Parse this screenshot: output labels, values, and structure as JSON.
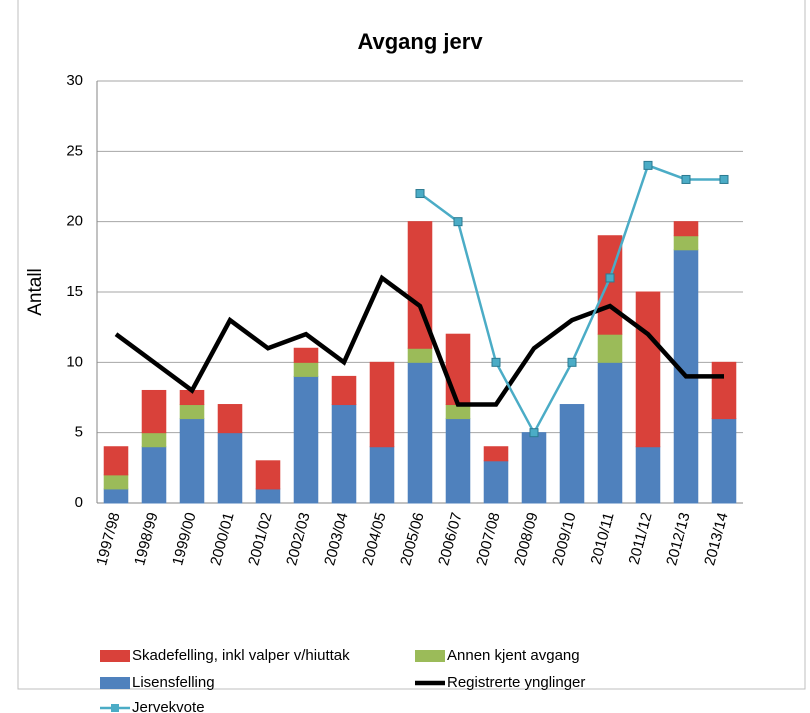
{
  "chart_data": {
    "type": "bar",
    "title": "Avgang jerv",
    "y_label": "Antall",
    "categories": [
      "1997/98",
      "1998/99",
      "1999/00",
      "2000/01",
      "2001/02",
      "2002/03",
      "2003/04",
      "2004/05",
      "2005/06",
      "2006/07",
      "2007/08",
      "2008/09",
      "2009/10",
      "2010/11",
      "2011/12",
      "2012/13",
      "2013/14"
    ],
    "series": [
      {
        "name": "Lisensfelling",
        "type": "bar",
        "color": "#4f81bd",
        "values": [
          1,
          4,
          6,
          5,
          1,
          9,
          7,
          4,
          10,
          6,
          3,
          5,
          7,
          10,
          4,
          18,
          6
        ]
      },
      {
        "name": "Annen kjent avgang",
        "type": "bar",
        "color": "#9bbb59",
        "values": [
          1,
          1,
          1,
          0,
          0,
          1,
          0,
          0,
          1,
          1,
          0,
          0,
          0,
          2,
          0,
          1,
          0
        ]
      },
      {
        "name": "Skadefelling, inkl valper v/hiuttak",
        "type": "bar",
        "color": "#d9413a",
        "values": [
          2,
          3,
          1,
          2,
          2,
          1,
          2,
          6,
          9,
          5,
          1,
          0,
          0,
          7,
          11,
          1,
          4
        ]
      },
      {
        "name": "Registrerte ynglinger",
        "type": "line",
        "color": "#000000",
        "values": [
          12,
          10,
          8,
          13,
          11,
          12,
          10,
          16,
          14,
          7,
          7,
          11,
          13,
          14,
          12,
          9,
          9
        ]
      },
      {
        "name": "Jervekvote",
        "type": "line",
        "color": "#4bacc6",
        "marker": "square",
        "values": [
          null,
          null,
          null,
          null,
          null,
          null,
          null,
          null,
          22,
          20,
          10,
          5,
          10,
          16,
          24,
          23,
          23
        ]
      }
    ],
    "ylim": [
      0,
      30
    ],
    "yticks": [
      0,
      5,
      10,
      15,
      20,
      25,
      30
    ],
    "grid": true,
    "stacked": true,
    "legend": "bottom"
  }
}
